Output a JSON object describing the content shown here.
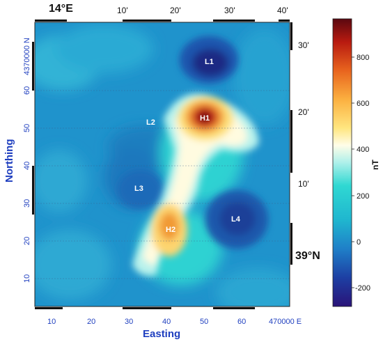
{
  "map": {
    "corner_lon_label": "14°E",
    "corner_lat_label": "39°N",
    "top_ticks": [
      "10'",
      "20'",
      "30'",
      "40'"
    ],
    "right_ticks": [
      "30'",
      "20'",
      "10'"
    ],
    "easting_ticks": [
      "10",
      "20",
      "30",
      "40",
      "50",
      "60"
    ],
    "easting_last_label": "470000 E",
    "northing_ticks": [
      "10",
      "20",
      "30",
      "40",
      "50",
      "60"
    ],
    "northing_first_label": "4370000 N",
    "xlabel": "Easting",
    "ylabel": "Northing",
    "anomalies": [
      {
        "label": "L1",
        "type": "low"
      },
      {
        "label": "L2",
        "type": "low"
      },
      {
        "label": "H1",
        "type": "high"
      },
      {
        "label": "L3",
        "type": "low"
      },
      {
        "label": "H2",
        "type": "high"
      },
      {
        "label": "L4",
        "type": "low"
      }
    ]
  },
  "colorbar": {
    "unit": "nT",
    "ticks": [
      "800",
      "600",
      "400",
      "200",
      "0",
      "-200"
    ],
    "range": [
      -280,
      940
    ],
    "colors": [
      "#2a1378",
      "#1d3fa3",
      "#1f7fc8",
      "#1fb6cf",
      "#2fd8d2",
      "#aef0ea",
      "#fffde8",
      "#ffe680",
      "#fbb040",
      "#e8641e",
      "#b81a10",
      "#5a0810"
    ]
  }
}
